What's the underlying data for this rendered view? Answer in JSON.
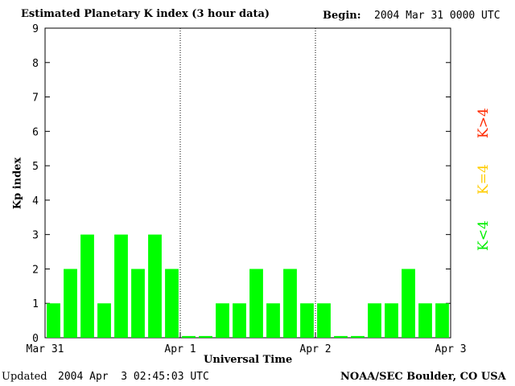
{
  "header": {
    "title": "Estimated Planetary K index (3 hour data)",
    "begin_label": "Begin:",
    "begin_value": "2004 Mar 31 0000 UTC"
  },
  "footer": {
    "updated_label": "Updated",
    "updated_value": "2004 Apr  3 02:45:03 UTC",
    "credit": "NOAA/SEC Boulder, CO USA"
  },
  "legend": {
    "gt": "K>4",
    "eq": "K=4",
    "lt": "K<4"
  },
  "colors": {
    "k_lt_4": "#00ff00",
    "k_eq_4": "#ffcc00",
    "k_gt_4": "#ff2a00",
    "axis": "#000000"
  },
  "chart_data": {
    "type": "bar",
    "title": "Estimated Planetary K index (3 hour data)",
    "xlabel": "Universal Time",
    "ylabel": "Kp index",
    "ylim": [
      0,
      9
    ],
    "yticks": [
      0,
      1,
      2,
      3,
      4,
      5,
      6,
      7,
      8,
      9
    ],
    "x_tick_labels": [
      "Mar 31",
      "Apr 1",
      "Apr 2",
      "Apr 3"
    ],
    "day_dividers": [
      "Apr 1",
      "Apr 2"
    ],
    "series": [
      {
        "values": [
          1,
          2,
          3,
          1,
          3,
          2,
          3,
          2,
          0.05,
          0.05,
          1,
          1,
          2,
          1,
          2,
          1,
          1,
          0.05,
          0.05,
          1,
          1,
          2,
          1,
          1
        ]
      }
    ]
  }
}
